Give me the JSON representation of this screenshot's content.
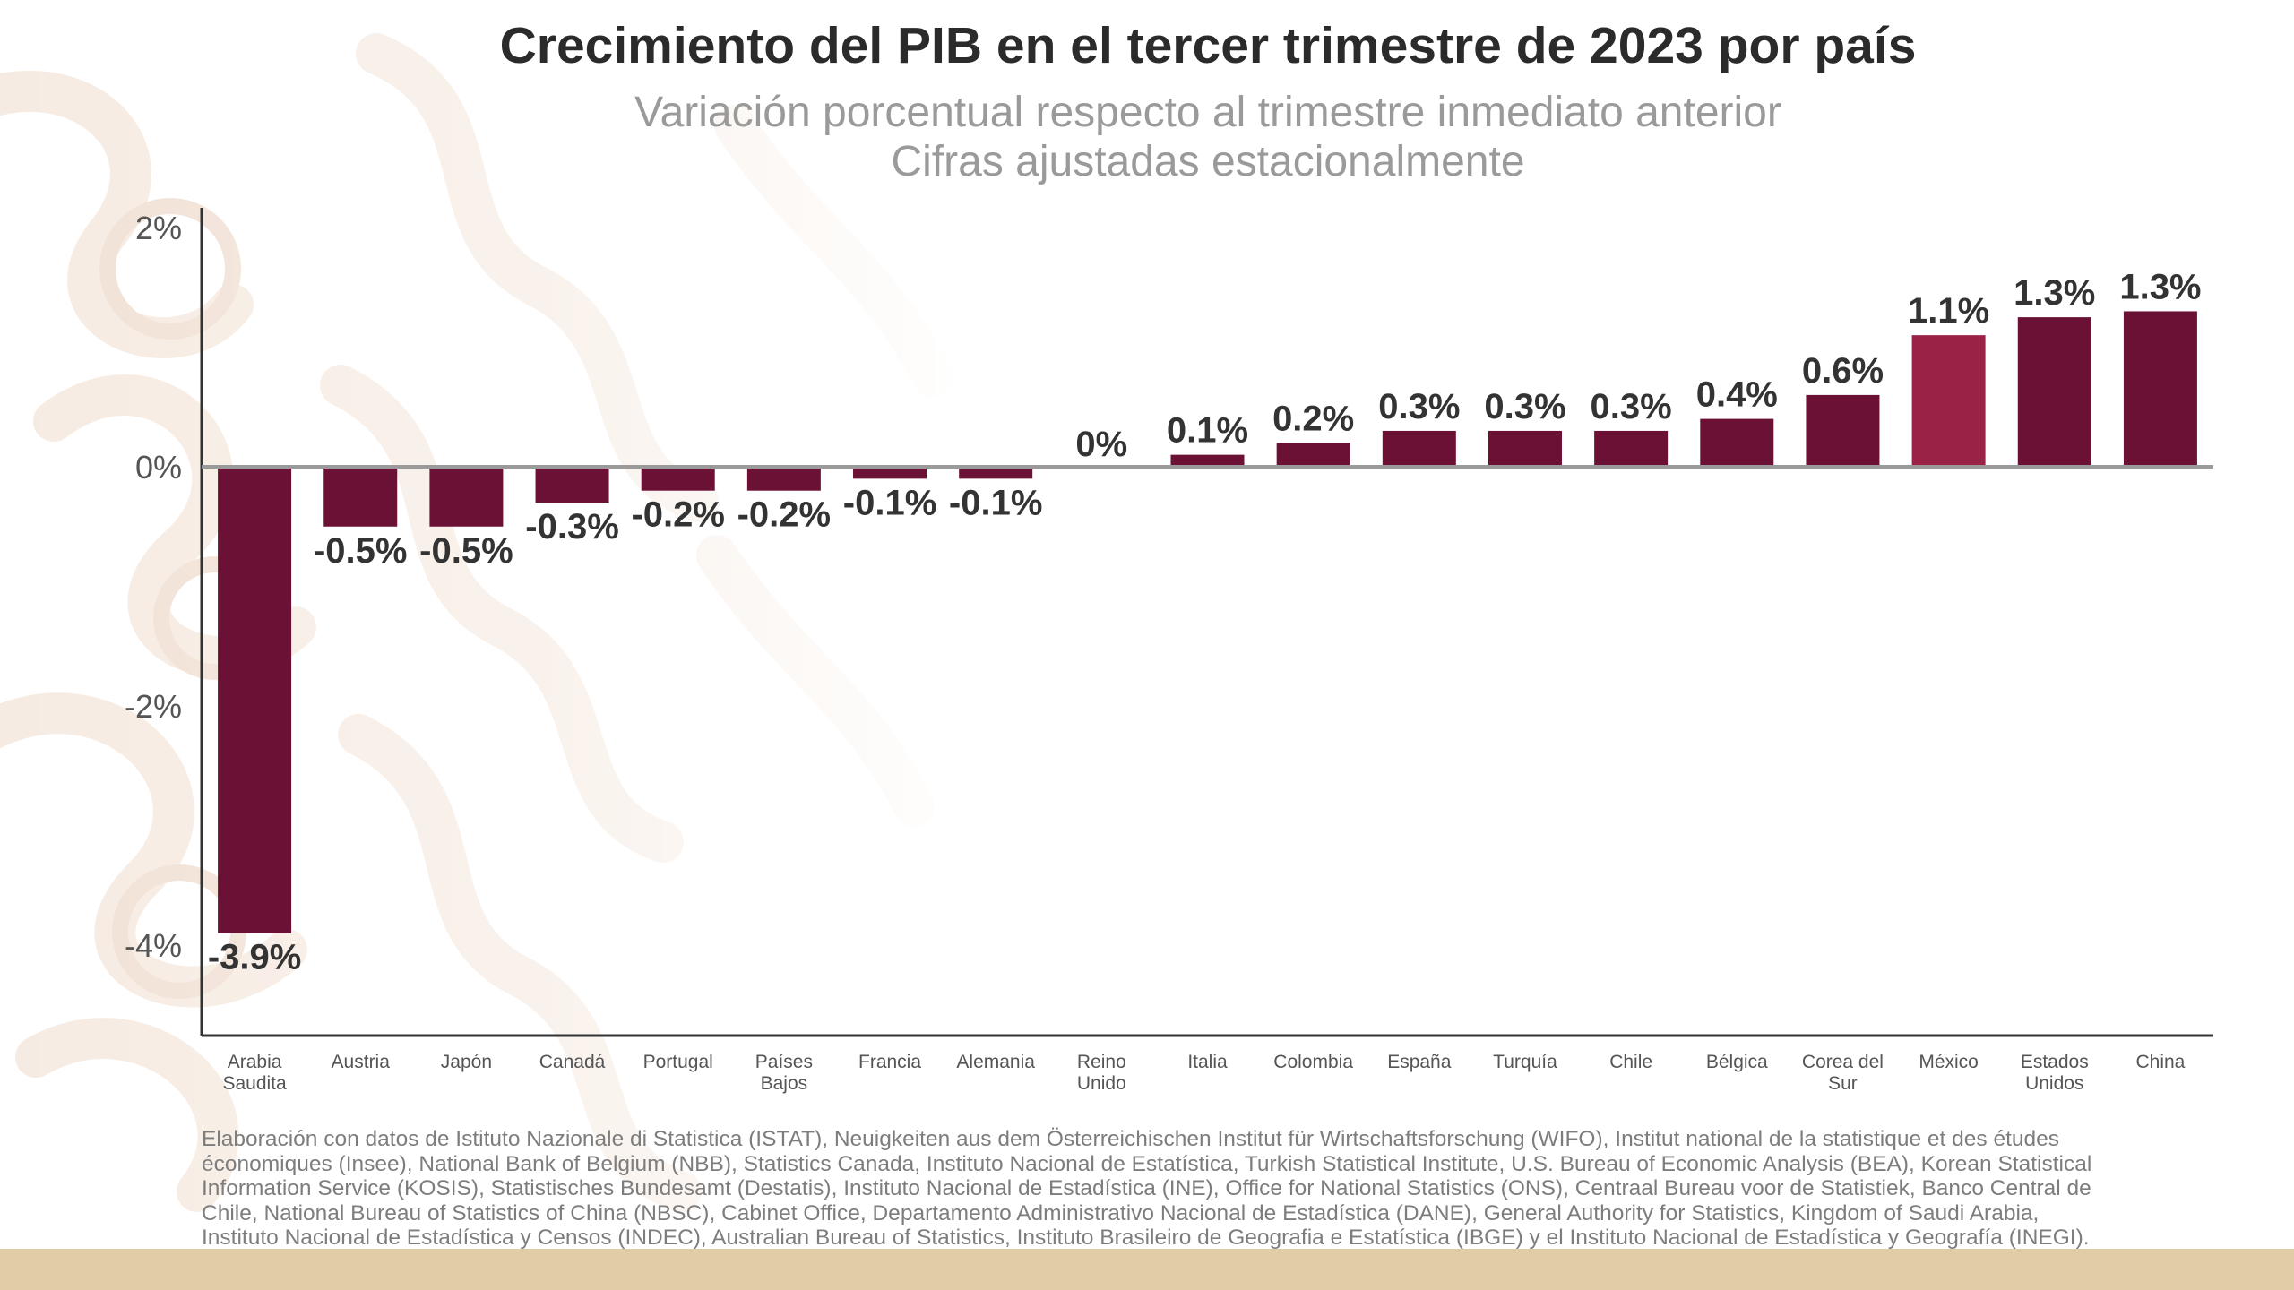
{
  "title": "Crecimiento del PIB en el tercer trimestre de 2023 por país",
  "subtitle_lines": [
    "Variación porcentual respecto al trimestre inmediato anterior",
    "Cifras ajustadas estacionalmente"
  ],
  "source_note": "Elaboración con datos de Istituto Nazionale di Statistica (ISTAT), Neuigkeiten aus dem Österreichischen Institut für Wirtschaftsforschung (WIFO), Institut national de la statistique et des études économiques (Insee), National Bank of Belgium (NBB), Statistics Canada, Instituto Nacional de Estatística, Turkish Statistical Institute, U.S. Bureau of Economic Analysis (BEA), Korean Statistical Information Service (KOSIS), Statistisches Bundesamt (Destatis), Instituto Nacional de Estadística (INE), Office for National Statistics (ONS), Centraal Bureau voor de Statistiek, Banco Central de Chile, National Bureau of Statistics of China (NBSC), Cabinet Office, Departamento Administrativo Nacional de Estadística (DANE), General Authority for Statistics, Kingdom of Saudi Arabia, Instituto Nacional de Estadística y Censos (INDEC), Australian Bureau of Statistics, Instituto Brasileiro de Geografia e Estatística (IBGE) y el Instituto Nacional de Estadística y Geografía (INEGI).",
  "colors": {
    "bar": "#6b1136",
    "highlight": "#9b2247",
    "axis": "#333333",
    "zero_line": "#9a9a9a",
    "band": "#e0cda6"
  },
  "chart_data": {
    "type": "bar",
    "title": "Crecimiento del PIB en el tercer trimestre de 2023 por país",
    "categories": [
      [
        "Arabia",
        "Saudita"
      ],
      [
        "Austria"
      ],
      [
        "Japón"
      ],
      [
        "Canadá"
      ],
      [
        "Portugal"
      ],
      [
        "Países",
        "Bajos"
      ],
      [
        "Francia"
      ],
      [
        "Alemania"
      ],
      [
        "Reino",
        "Unido"
      ],
      [
        "Italia"
      ],
      [
        "Colombia"
      ],
      [
        "España"
      ],
      [
        "Turquía"
      ],
      [
        "Chile"
      ],
      [
        "Bélgica"
      ],
      [
        "Corea del",
        "Sur"
      ],
      [
        "México"
      ],
      [
        "Estados",
        "Unidos"
      ],
      [
        "China"
      ]
    ],
    "values": [
      -3.9,
      -0.5,
      -0.5,
      -0.3,
      -0.2,
      -0.2,
      -0.1,
      -0.1,
      0.0,
      0.1,
      0.2,
      0.3,
      0.3,
      0.3,
      0.4,
      0.6,
      1.1,
      1.25,
      1.3
    ],
    "data_labels": [
      "-3.9%",
      "-0.5%",
      "-0.5%",
      "-0.3%",
      "-0.2%",
      "-0.2%",
      "-0.1%",
      "-0.1%",
      "0%",
      "0.1%",
      "0.2%",
      "0.3%",
      "0.3%",
      "0.3%",
      "0.4%",
      "0.6%",
      "1.1%",
      "1.3%",
      "1.3%"
    ],
    "highlight_category": "México",
    "y_ticks": [
      2,
      0,
      -2,
      -4
    ],
    "y_tick_labels": [
      "2%",
      "0%",
      "-2%",
      "-4%"
    ],
    "ylim": [
      -4.75,
      2.15
    ],
    "xlabel": "",
    "ylabel": "",
    "grid": false,
    "legend": "none"
  }
}
